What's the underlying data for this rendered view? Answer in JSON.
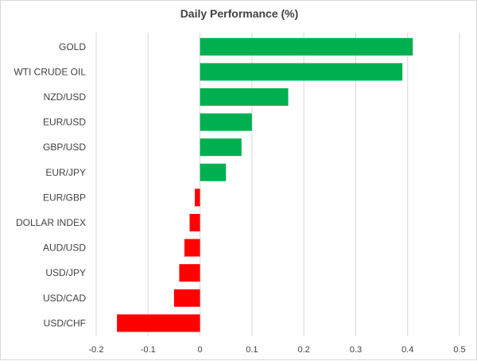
{
  "chart_data": {
    "type": "bar",
    "orientation": "horizontal",
    "title": "Daily Performance (%)",
    "xlabel": "",
    "ylabel": "",
    "categories": [
      "GOLD",
      "WTI CRUDE OIL",
      "NZD/USD",
      "EUR/USD",
      "GBP/USD",
      "EUR/JPY",
      "EUR/GBP",
      "DOLLAR INDEX",
      "AUD/USD",
      "USD/JPY",
      "USD/CAD",
      "USD/CHF"
    ],
    "values": [
      0.41,
      0.39,
      0.17,
      0.1,
      0.08,
      0.05,
      -0.01,
      -0.02,
      -0.03,
      -0.04,
      -0.05,
      -0.16
    ],
    "xlim": [
      -0.2,
      0.5
    ],
    "xticks": [
      -0.2,
      -0.1,
      0,
      0.1,
      0.2,
      0.3,
      0.4,
      0.5
    ],
    "xtick_labels": [
      "-0.2",
      "-0.1",
      "0",
      "0.1",
      "0.2",
      "0.3",
      "0.4",
      "0.5"
    ],
    "grid": "vertical",
    "legend": "none",
    "colors": {
      "positive": "#00b050",
      "negative": "#ff0000",
      "grid": "#d9d9d9",
      "text": "#404040"
    }
  }
}
